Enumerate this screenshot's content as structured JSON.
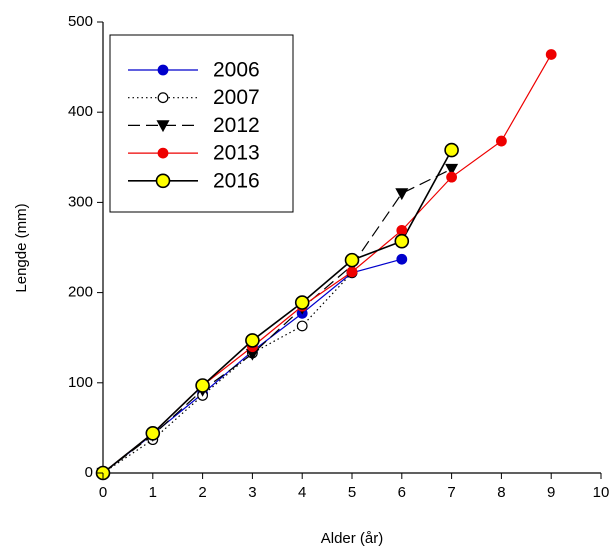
{
  "chart_data": {
    "type": "line",
    "x_label": "Alder (år)",
    "y_label": "Lengde (mm)",
    "xlim": [
      0,
      10
    ],
    "xticks": [
      0,
      1,
      2,
      3,
      4,
      5,
      6,
      7,
      8,
      9,
      10
    ],
    "ylim": [
      0,
      500
    ],
    "yticks": [
      0,
      100,
      200,
      300,
      400,
      500
    ],
    "legend": "upper left",
    "series": [
      {
        "name": "2006",
        "color": "#0000cc",
        "marker": "circle",
        "marker_fill": "#0000cc",
        "dash": "solid",
        "x": [
          0,
          1,
          2,
          3,
          4,
          5,
          6
        ],
        "values": [
          0,
          43,
          88,
          135,
          177,
          222,
          237
        ]
      },
      {
        "name": "2007",
        "color": "#000000",
        "marker": "circle",
        "marker_fill": "#ffffff",
        "dash": "dotted",
        "x": [
          0,
          1,
          2,
          3,
          4,
          5
        ],
        "values": [
          0,
          37,
          86,
          133,
          163,
          222
        ]
      },
      {
        "name": "2012",
        "color": "#000000",
        "marker": "triangle-down",
        "marker_fill": "#000000",
        "dash": "dashed",
        "x": [
          0,
          1,
          2,
          3,
          4,
          5,
          6,
          7
        ],
        "values": [
          0,
          42,
          92,
          132,
          183,
          230,
          310,
          337
        ]
      },
      {
        "name": "2013",
        "color": "#ee0000",
        "marker": "circle",
        "marker_fill": "#ee0000",
        "dash": "solid",
        "x": [
          0,
          1,
          2,
          3,
          4,
          5,
          6,
          7,
          8,
          9
        ],
        "values": [
          0,
          44,
          97,
          140,
          185,
          223,
          269,
          328,
          368,
          464
        ]
      },
      {
        "name": "2016",
        "color": "#000000",
        "marker": "big-circle",
        "marker_fill": "#ffff00",
        "dash": "solid",
        "x": [
          0,
          1,
          2,
          3,
          4,
          5,
          6,
          7
        ],
        "values": [
          0,
          44,
          97,
          147,
          189,
          236,
          257,
          358
        ]
      }
    ]
  }
}
